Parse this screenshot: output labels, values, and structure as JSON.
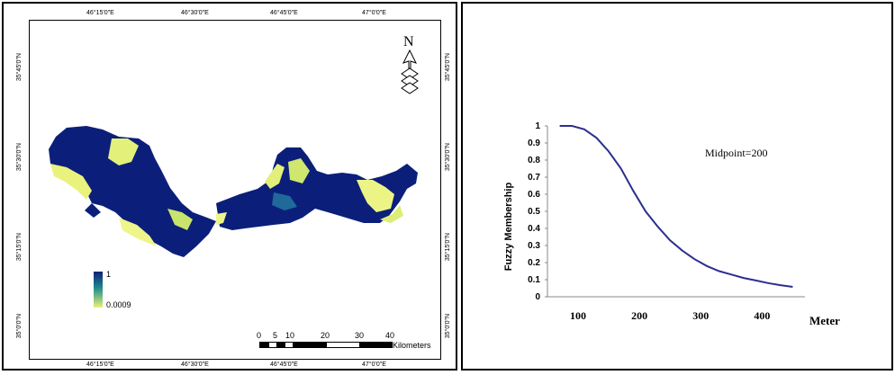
{
  "map": {
    "top_labels": [
      "46°15'0\"E",
      "46°30'0\"E",
      "46°45'0\"E",
      "47°0'0\"E"
    ],
    "bottom_labels": [
      "46°15'0\"E",
      "46°30'0\"E",
      "46°45'0\"E",
      "47°0'0\"E"
    ],
    "left_labels": [
      "35°45'0\"N",
      "35°30'0\"N",
      "35°15'0\"N",
      "35°0'0\"N"
    ],
    "right_labels": [
      "35°45'0\"N",
      "35°30'0\"N",
      "35°15'0\"N",
      "35°0'0\"N"
    ],
    "north_label": "N",
    "legend": {
      "high": "1",
      "low": "0.0009"
    },
    "scale": {
      "ticks": [
        "0",
        "5",
        "10",
        "20",
        "30",
        "40"
      ],
      "unit": "Kilometers"
    },
    "colors": {
      "high": "#0b1f7a",
      "mid": "#1f8a8a",
      "low": "#f2f58c"
    }
  },
  "chart_data": {
    "type": "line",
    "title": "",
    "annotation": "Midpoint=200",
    "xlabel": "Meter",
    "ylabel": "Fuzzy Membership",
    "xlim": [
      50,
      470
    ],
    "ylim": [
      0,
      1
    ],
    "x_ticks": [
      "100",
      "200",
      "300",
      "400"
    ],
    "y_ticks": [
      "0",
      "0.1",
      "0.2",
      "0.3",
      "0.4",
      "0.5",
      "0.6",
      "0.7",
      "0.8",
      "0.9",
      "1"
    ],
    "series": [
      {
        "color": "#2b2f8f",
        "x": [
          70,
          90,
          110,
          130,
          150,
          170,
          190,
          210,
          230,
          250,
          270,
          290,
          310,
          330,
          350,
          370,
          390,
          410,
          430,
          450
        ],
        "y": [
          1.0,
          1.0,
          0.98,
          0.93,
          0.85,
          0.75,
          0.62,
          0.5,
          0.41,
          0.33,
          0.27,
          0.22,
          0.18,
          0.15,
          0.13,
          0.11,
          0.095,
          0.08,
          0.068,
          0.058
        ]
      }
    ]
  }
}
